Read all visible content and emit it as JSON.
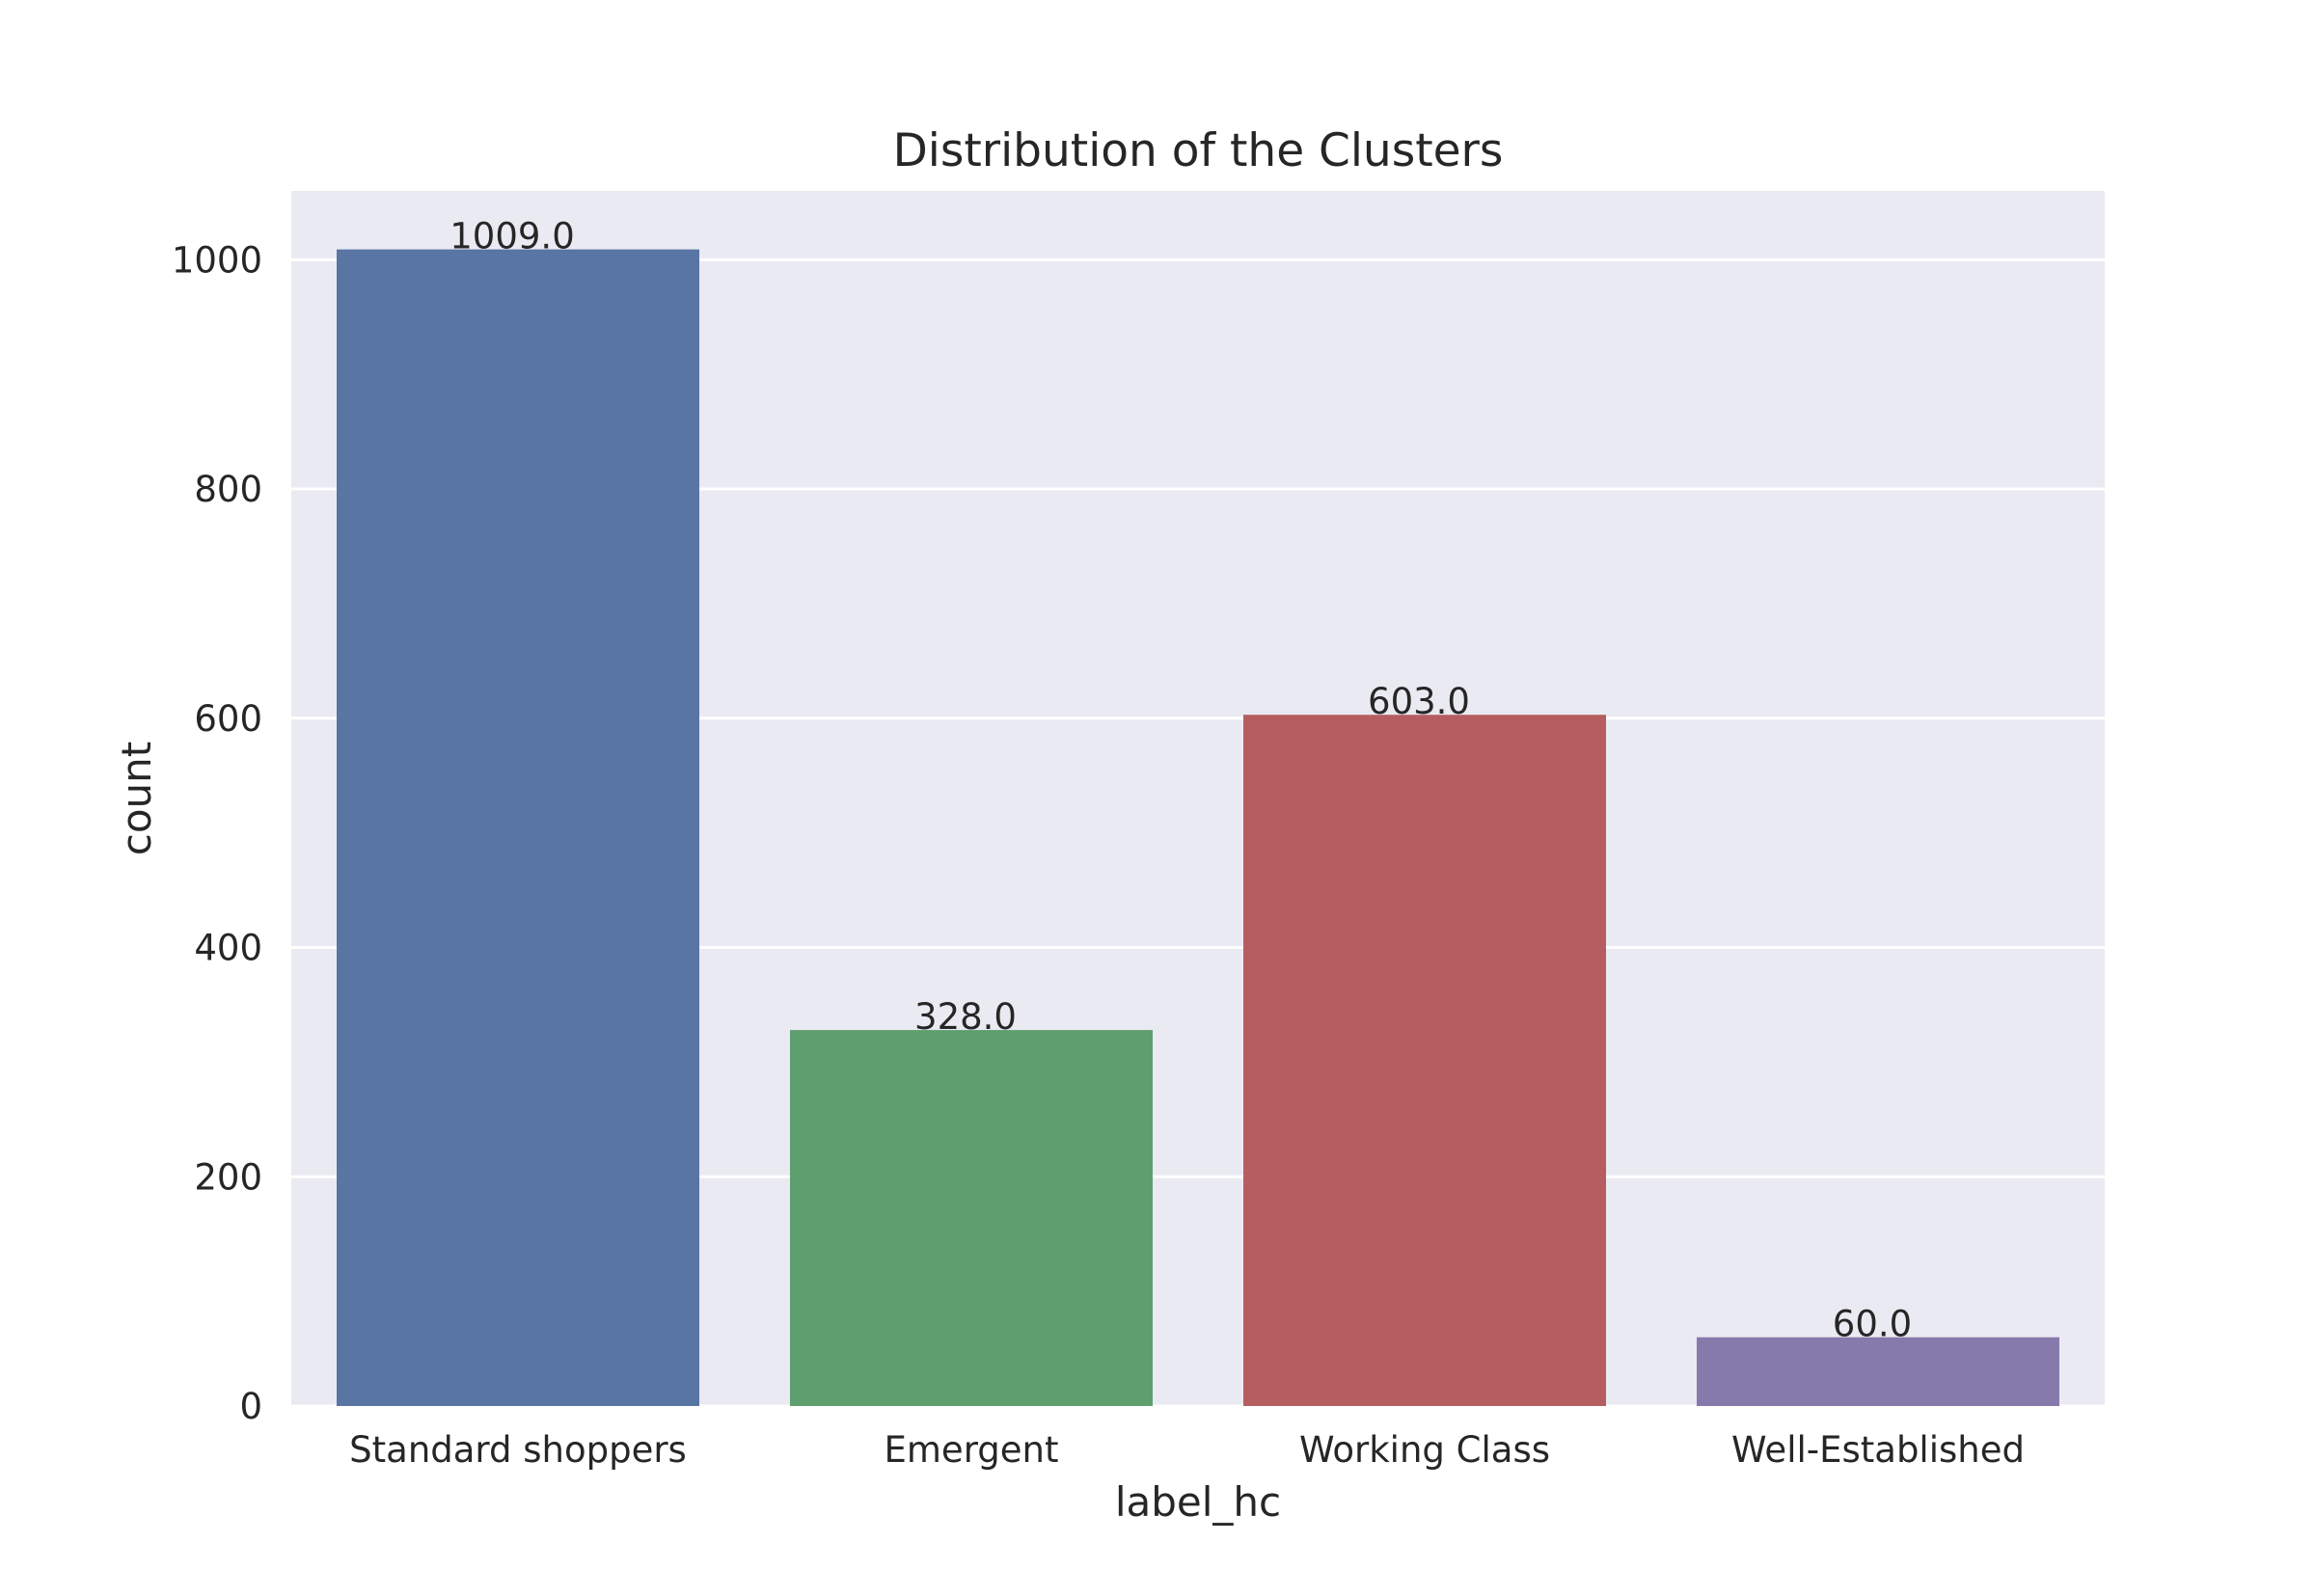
{
  "chart_data": {
    "type": "bar",
    "title": "Distribution of the Clusters",
    "xlabel": "label_hc",
    "ylabel": "count",
    "categories": [
      "Standard shoppers",
      "Emergent",
      "Working Class",
      "Well-Established"
    ],
    "values": [
      1009,
      328,
      603,
      60
    ],
    "value_labels": [
      "1009.0",
      "328.0",
      "603.0",
      "60.0"
    ],
    "colors": [
      "#5975a4",
      "#5f9e6e",
      "#b55d60",
      "#857aab"
    ],
    "ylim": [
      0,
      1060
    ],
    "yticks": [
      0,
      200,
      400,
      600,
      800,
      1000
    ],
    "grid": true,
    "legend": "none",
    "background": "#eaeaf2",
    "grid_color": "#ffffff"
  }
}
